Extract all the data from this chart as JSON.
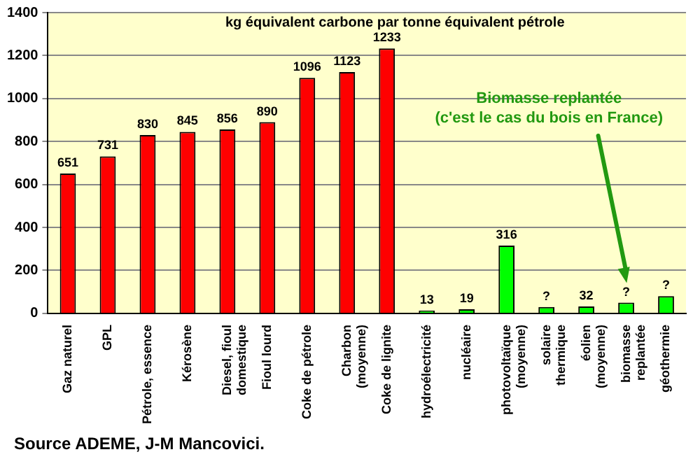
{
  "chart_data": {
    "type": "bar",
    "title": "kg équivalent carbone par tonne équivalent pétrole",
    "categories": [
      "Gaz naturel",
      "GPL",
      "Pétrole, essence",
      "Kérosène",
      "Diesel, fioul domestique",
      "Fioul lourd",
      "Coke de pétrole",
      "Charbon (moyenne)",
      "Coke de lignite",
      "hydroélectricité",
      "nucléaire",
      "photovoltaïque (moyenne)",
      "solaire thermique",
      "éolien (moyenne)",
      "biomasse replantée",
      "géothermie"
    ],
    "values": [
      651,
      731,
      830,
      845,
      856,
      890,
      1096,
      1123,
      1233,
      13,
      19,
      316,
      30,
      32,
      50,
      80
    ],
    "value_labels": [
      "651",
      "731",
      "830",
      "845",
      "856",
      "890",
      "1096",
      "1123",
      "1233",
      "13",
      "19",
      "316",
      "?",
      "32",
      "?",
      "?"
    ],
    "colors": [
      "#ff0000",
      "#ff0000",
      "#ff0000",
      "#ff0000",
      "#ff0000",
      "#ff0000",
      "#ff0000",
      "#ff0000",
      "#ff0000",
      "#00ff00",
      "#00ff00",
      "#00ff00",
      "#00ff00",
      "#00ff00",
      "#00ff00",
      "#00ff00"
    ],
    "ylim": [
      0,
      1400
    ],
    "yticks": [
      0,
      200,
      400,
      600,
      800,
      1000,
      1200,
      1400
    ],
    "grid": "y",
    "legend": false,
    "annotations": [
      "Biomasse replantée (c'est le cas du bois en France)",
      "Source ADEME, J-M Mancovici."
    ]
  }
}
